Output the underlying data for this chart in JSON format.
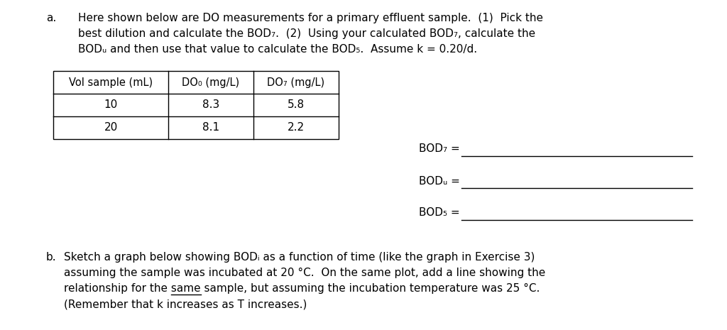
{
  "background_color": "#ffffff",
  "fig_width": 10.24,
  "fig_height": 4.65,
  "dpi": 100,
  "part_a_label": "a.",
  "part_a_line1": "Here shown below are DO measurements for a primary effluent sample.  (1)  Pick the",
  "part_a_line2": "best dilution and calculate the BOD₇.  (2)  Using your calculated BOD₇, calculate the",
  "part_a_line3": "BODᵤ and then use that value to calculate the BOD₅.  Assume k = 0.20/d.",
  "table_headers": [
    "Vol sample (mL)",
    "DO₀ (mg/L)",
    "DO₇ (mg/L)"
  ],
  "table_row1": [
    "10",
    "8.3",
    "5.8"
  ],
  "table_row2": [
    "20",
    "8.1",
    "2.2"
  ],
  "bod7_label": "BOD₇ =",
  "bodu_label": "BODᵤ =",
  "bod5_label": "BOD₅ =",
  "part_b_label": "b.",
  "part_b_line1": "Sketch a graph below showing BODᵢ as a function of time (like the graph in Exercise 3)",
  "part_b_line2": "assuming the sample was incubated at 20 °C.  On the same plot, add a line showing the",
  "part_b_line3a": "relationship for the ",
  "part_b_line3b": "same",
  "part_b_line3c": " sample, but assuming the incubation temperature was 25 °C.",
  "part_b_line4": "(Remember that k increases as T increases.)",
  "font_size": 11.0,
  "font_family": "DejaVu Sans",
  "text_color": "#000000"
}
